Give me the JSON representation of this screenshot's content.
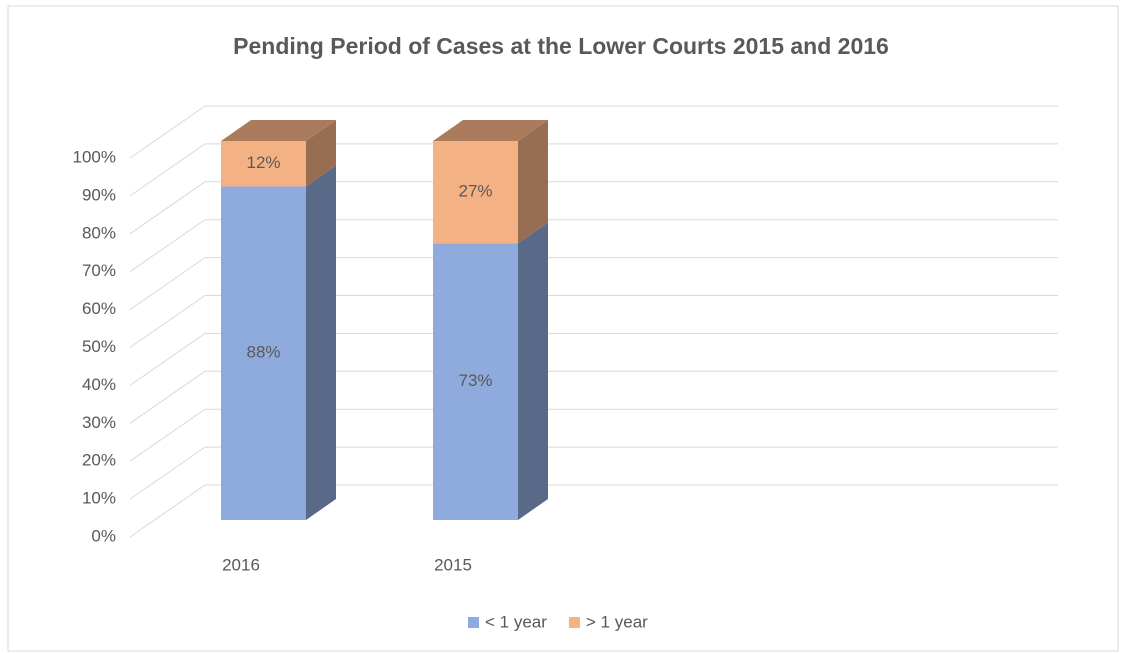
{
  "chart_data": {
    "type": "bar3d_stacked",
    "title": "Pending Period of Cases at the Lower Courts 2015 and 2016",
    "categories": [
      "2016",
      "2015"
    ],
    "series": [
      {
        "name": "< 1 year",
        "color": "#8faadc",
        "values": [
          88,
          73
        ],
        "value_labels": [
          "88%",
          "73%"
        ]
      },
      {
        "name": "> 1 year",
        "color": "#f4b183",
        "values": [
          12,
          27
        ],
        "value_labels": [
          "12%",
          "27%"
        ]
      }
    ],
    "ylim": [
      0,
      100
    ],
    "yticks": [
      {
        "value": 0,
        "label": "0%"
      },
      {
        "value": 10,
        "label": "10%"
      },
      {
        "value": 20,
        "label": "20%"
      },
      {
        "value": 30,
        "label": "30%"
      },
      {
        "value": 40,
        "label": "40%"
      },
      {
        "value": 50,
        "label": "50%"
      },
      {
        "value": 60,
        "label": "60%"
      },
      {
        "value": 70,
        "label": "70%"
      },
      {
        "value": 80,
        "label": "80%"
      },
      {
        "value": 90,
        "label": "90%"
      },
      {
        "value": 100,
        "label": "100%"
      }
    ],
    "grid": true,
    "legend": "bottom"
  }
}
